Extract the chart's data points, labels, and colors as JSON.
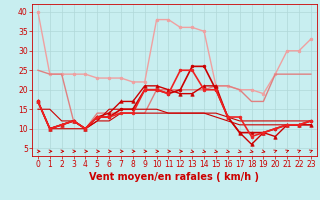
{
  "title": "",
  "xlabel": "Vent moyen/en rafales ( km/h )",
  "background_color": "#c8eef0",
  "grid_color": "#b0d8d8",
  "x_ticks": [
    0,
    1,
    2,
    3,
    4,
    5,
    6,
    7,
    8,
    9,
    10,
    11,
    12,
    13,
    14,
    15,
    16,
    17,
    18,
    19,
    20,
    21,
    22,
    23
  ],
  "y_ticks": [
    5,
    10,
    15,
    20,
    25,
    30,
    35,
    40
  ],
  "ylim": [
    3,
    42
  ],
  "xlim": [
    -0.5,
    23.5
  ],
  "series": [
    {
      "x": [
        0,
        1,
        2,
        3,
        4,
        5,
        6,
        7,
        8,
        9,
        10,
        11,
        12,
        13,
        14,
        15,
        16,
        17,
        18,
        19,
        20,
        21,
        22,
        23
      ],
      "y": [
        40,
        24,
        24,
        24,
        24,
        23,
        23,
        23,
        22,
        22,
        38,
        38,
        36,
        36,
        35,
        21,
        21,
        20,
        20,
        19,
        24,
        30,
        30,
        33
      ],
      "color": "#f0a0a0",
      "marker": "o",
      "markersize": 2,
      "linewidth": 1.0,
      "zorder": 2
    },
    {
      "x": [
        0,
        1,
        2,
        3,
        4,
        5,
        6,
        7,
        8,
        9,
        10,
        11,
        12,
        13,
        14,
        15,
        16,
        17,
        18,
        19,
        20,
        21,
        22,
        23
      ],
      "y": [
        25,
        24,
        24,
        12,
        10,
        14,
        14,
        14,
        14,
        14,
        20,
        20,
        20,
        20,
        20,
        21,
        21,
        20,
        17,
        17,
        24,
        24,
        24,
        24
      ],
      "color": "#e08080",
      "marker": null,
      "markersize": 0,
      "linewidth": 1.0,
      "zorder": 2
    },
    {
      "x": [
        0,
        1,
        2,
        3,
        4,
        5,
        6,
        7,
        8,
        9,
        10,
        11,
        12,
        13,
        14,
        15,
        16,
        17,
        18,
        19,
        20,
        21,
        22,
        23
      ],
      "y": [
        17,
        10,
        11,
        12,
        10,
        13,
        14,
        17,
        17,
        21,
        21,
        20,
        19,
        19,
        21,
        21,
        13,
        9,
        6,
        9,
        8,
        11,
        11,
        11
      ],
      "color": "#cc0000",
      "marker": "^",
      "markersize": 2.5,
      "linewidth": 1.0,
      "zorder": 3
    },
    {
      "x": [
        0,
        1,
        2,
        3,
        4,
        5,
        6,
        7,
        8,
        9,
        10,
        11,
        12,
        13,
        14,
        15,
        16,
        17,
        18,
        19,
        20,
        21,
        22,
        23
      ],
      "y": [
        17,
        10,
        11,
        12,
        10,
        13,
        13,
        15,
        15,
        20,
        20,
        19,
        20,
        26,
        26,
        20,
        13,
        9,
        9,
        9,
        10,
        11,
        11,
        12
      ],
      "color": "#cc0000",
      "marker": "o",
      "markersize": 2,
      "linewidth": 1.2,
      "zorder": 4
    },
    {
      "x": [
        0,
        1,
        2,
        3,
        4,
        5,
        6,
        7,
        8,
        9,
        10,
        11,
        12,
        13,
        14,
        15,
        16,
        17,
        18,
        19,
        20,
        21,
        22,
        23
      ],
      "y": [
        17,
        10,
        11,
        12,
        10,
        13,
        13,
        14,
        14,
        20,
        20,
        19,
        25,
        25,
        20,
        20,
        13,
        13,
        8,
        9,
        10,
        11,
        11,
        12
      ],
      "color": "#ee2222",
      "marker": "o",
      "markersize": 2,
      "linewidth": 1.2,
      "zorder": 4
    },
    {
      "x": [
        0,
        1,
        2,
        3,
        4,
        5,
        6,
        7,
        8,
        9,
        10,
        11,
        12,
        13,
        14,
        15,
        16,
        17,
        18,
        19,
        20,
        21,
        22,
        23
      ],
      "y": [
        15,
        15,
        12,
        12,
        10,
        12,
        15,
        15,
        15,
        15,
        15,
        14,
        14,
        14,
        14,
        14,
        13,
        12,
        12,
        12,
        12,
        12,
        12,
        12
      ],
      "color": "#cc0000",
      "marker": null,
      "markersize": 0,
      "linewidth": 0.8,
      "zorder": 2
    },
    {
      "x": [
        0,
        1,
        2,
        3,
        4,
        5,
        6,
        7,
        8,
        9,
        10,
        11,
        12,
        13,
        14,
        15,
        16,
        17,
        18,
        19,
        20,
        21,
        22,
        23
      ],
      "y": [
        17,
        10,
        10,
        10,
        10,
        12,
        12,
        14,
        14,
        14,
        14,
        14,
        14,
        14,
        14,
        13,
        12,
        11,
        11,
        11,
        11,
        11,
        11,
        11
      ],
      "color": "#cc0000",
      "marker": null,
      "markersize": 0,
      "linewidth": 0.8,
      "zorder": 2
    }
  ],
  "xlabel_fontsize": 7,
  "tick_fontsize": 5.5,
  "xlabel_color": "#cc0000",
  "arrow_directions": [
    "right",
    "right",
    "right",
    "right",
    "right",
    "right",
    "right",
    "right",
    "right",
    "right",
    "right",
    "right",
    "right",
    "down-right",
    "down-right",
    "down-right",
    "down-right",
    "down-right",
    "down-right",
    "down-right",
    "up-right",
    "up-right",
    "up-right",
    "up-right"
  ]
}
